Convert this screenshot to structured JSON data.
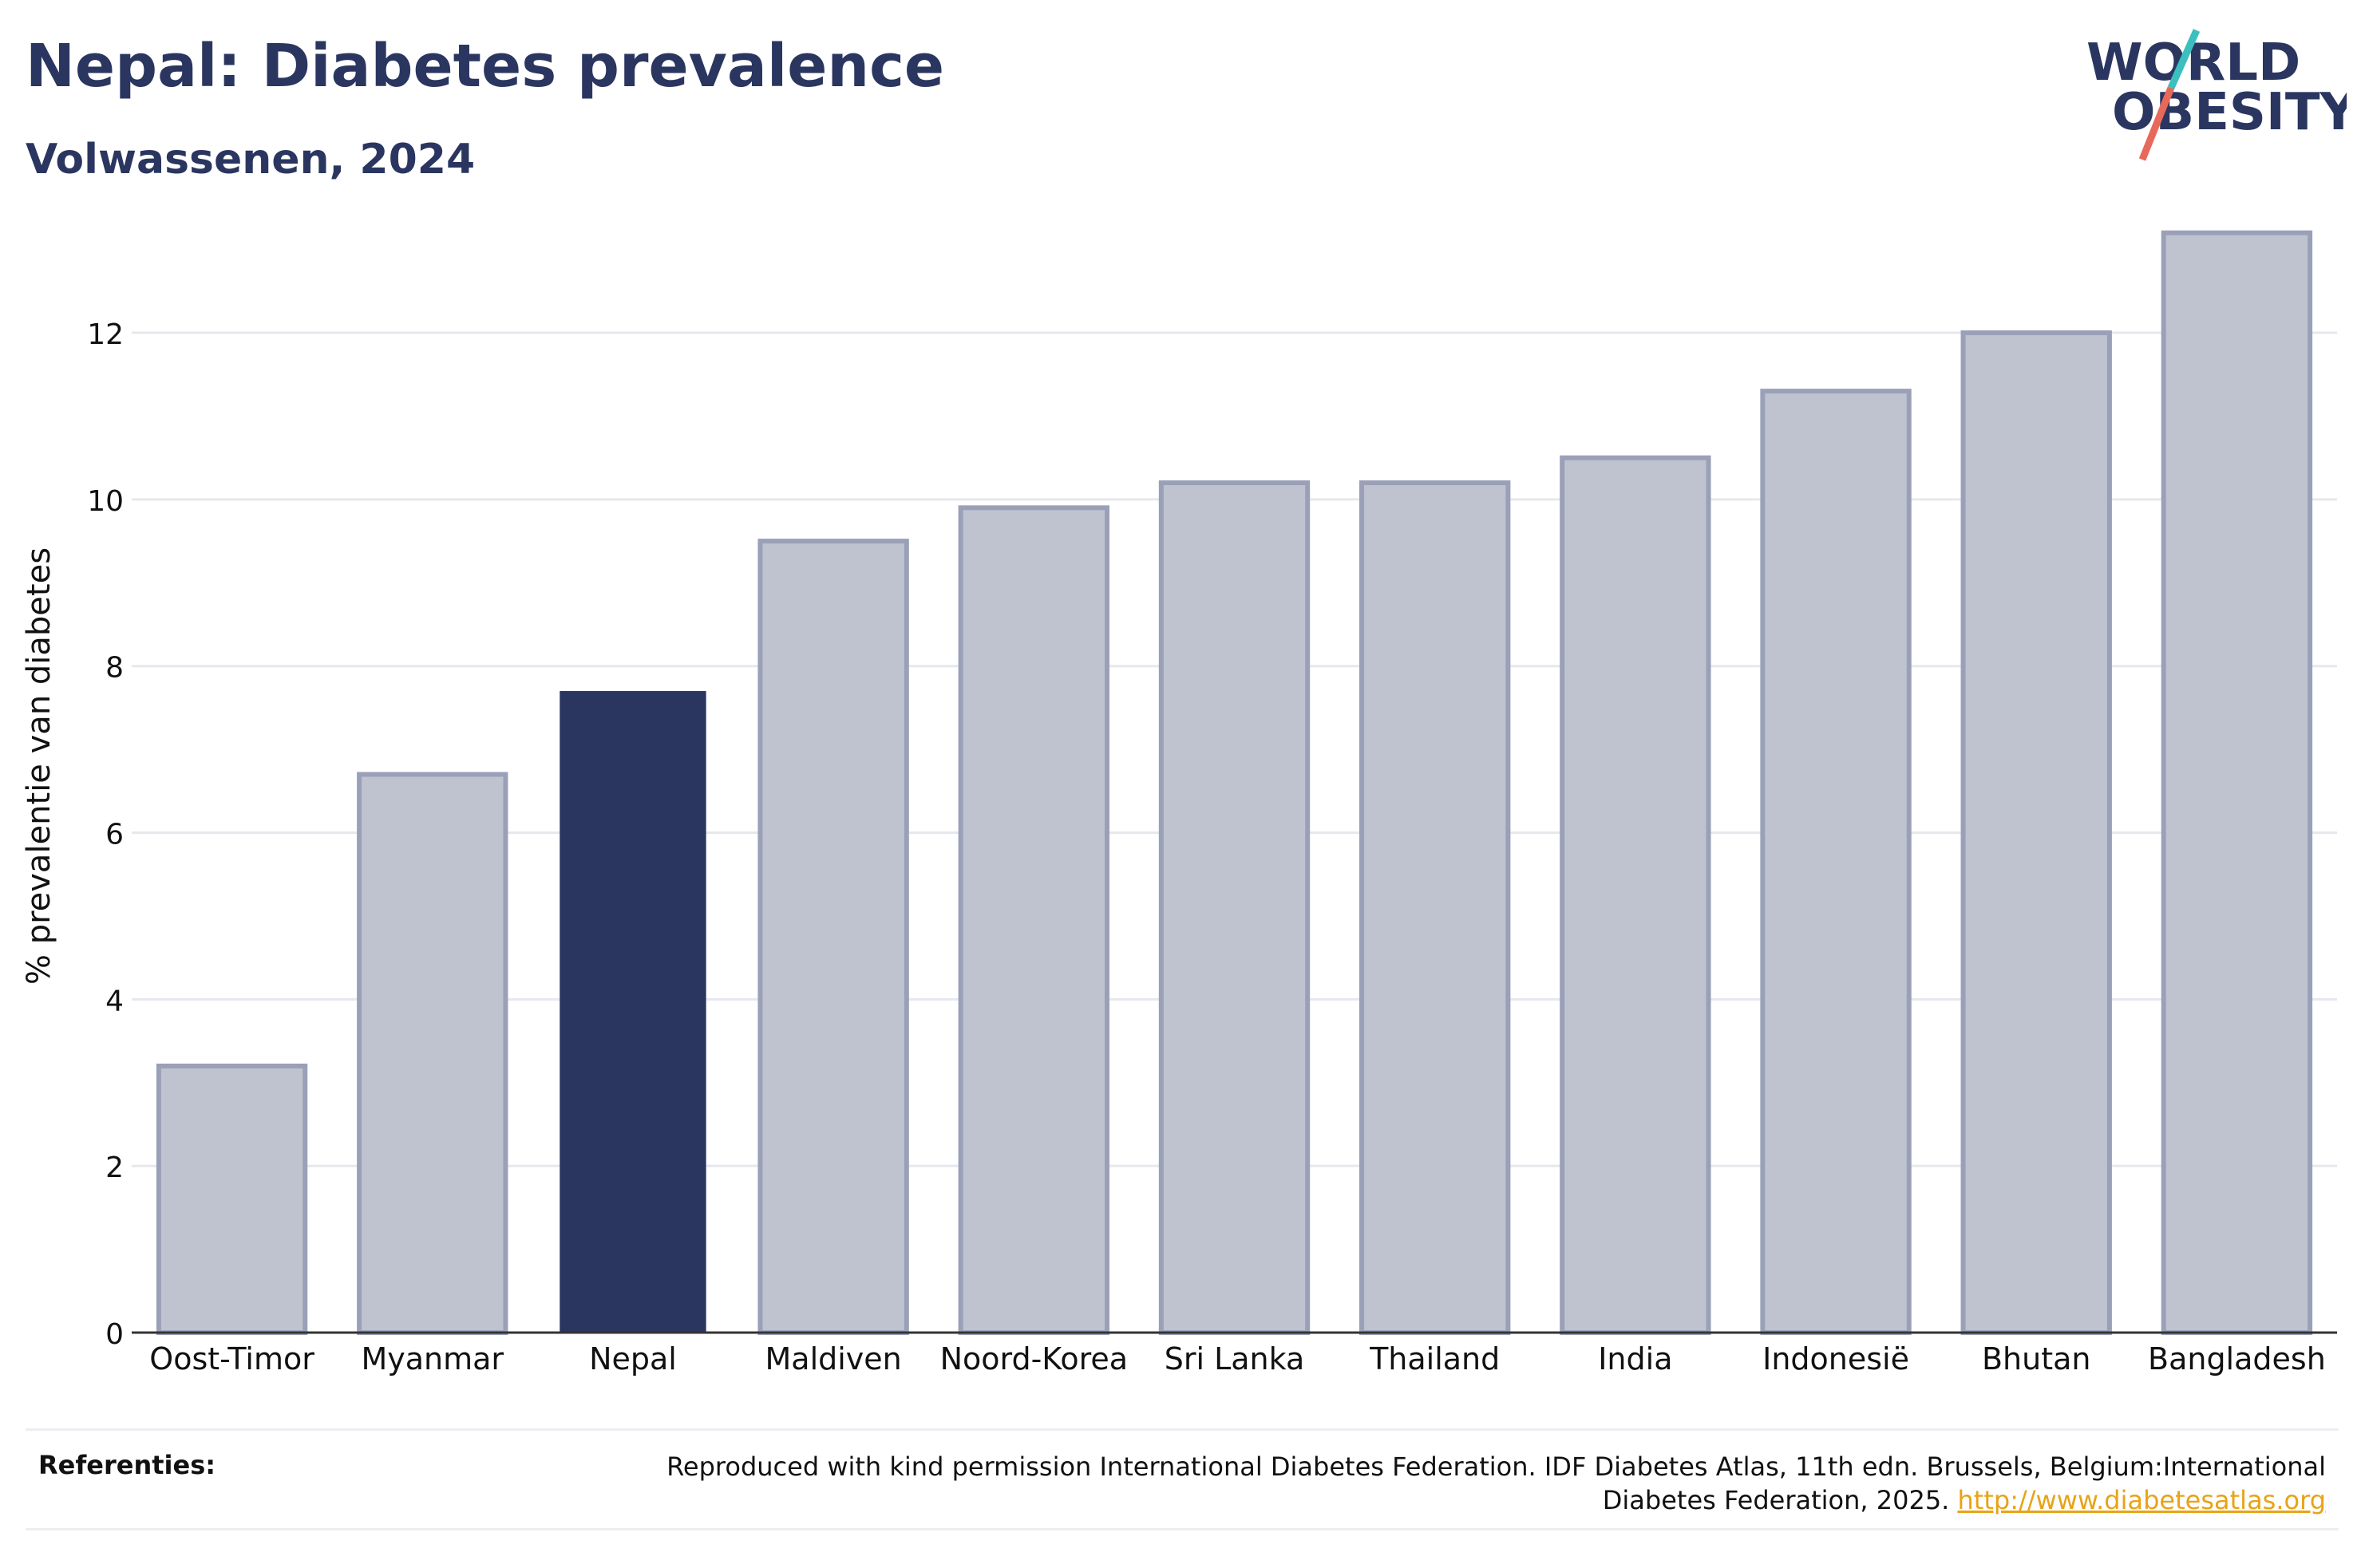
{
  "header": {
    "title": "Nepal: Diabetes prevalence",
    "subtitle": "Volwassenen, 2024"
  },
  "logo": {
    "line1": "WORLD",
    "line2": "OBESITY",
    "colors": {
      "text": "#2a3660",
      "slash_top": "#3bbfbf",
      "slash_bottom": "#e8695a"
    }
  },
  "chart_data": {
    "type": "bar",
    "title": "Nepal: Diabetes prevalence",
    "subtitle": "Volwassenen, 2024",
    "xlabel": "",
    "ylabel": "% prevalentie van diabetes",
    "categories": [
      "Oost-Timor",
      "Myanmar",
      "Nepal",
      "Maldiven",
      "Noord-Korea",
      "Sri Lanka",
      "Thailand",
      "India",
      "Indonesië",
      "Bhutan",
      "Bangladesh"
    ],
    "values": [
      3.2,
      6.7,
      7.7,
      9.5,
      9.9,
      10.2,
      10.2,
      10.5,
      11.3,
      12.0,
      13.2
    ],
    "highlight": "Nepal",
    "ylim": [
      0,
      13.6
    ],
    "yticks": [
      0,
      2,
      4,
      6,
      8,
      10,
      12
    ],
    "grid": true,
    "colors": {
      "bar": "#bfc3d0",
      "bar_edge": "#9aa0b8",
      "highlight": "#2a3660",
      "grid": "#e6e8ee",
      "axis": "#333333"
    }
  },
  "references": {
    "label": "Referenties:",
    "text": "Reproduced with kind permission International Diabetes Federation. IDF Diabetes Atlas, 11th edn. Brussels, Belgium:International Diabetes Federation, 2025.",
    "link": "http://www.diabetesatlas.org"
  }
}
